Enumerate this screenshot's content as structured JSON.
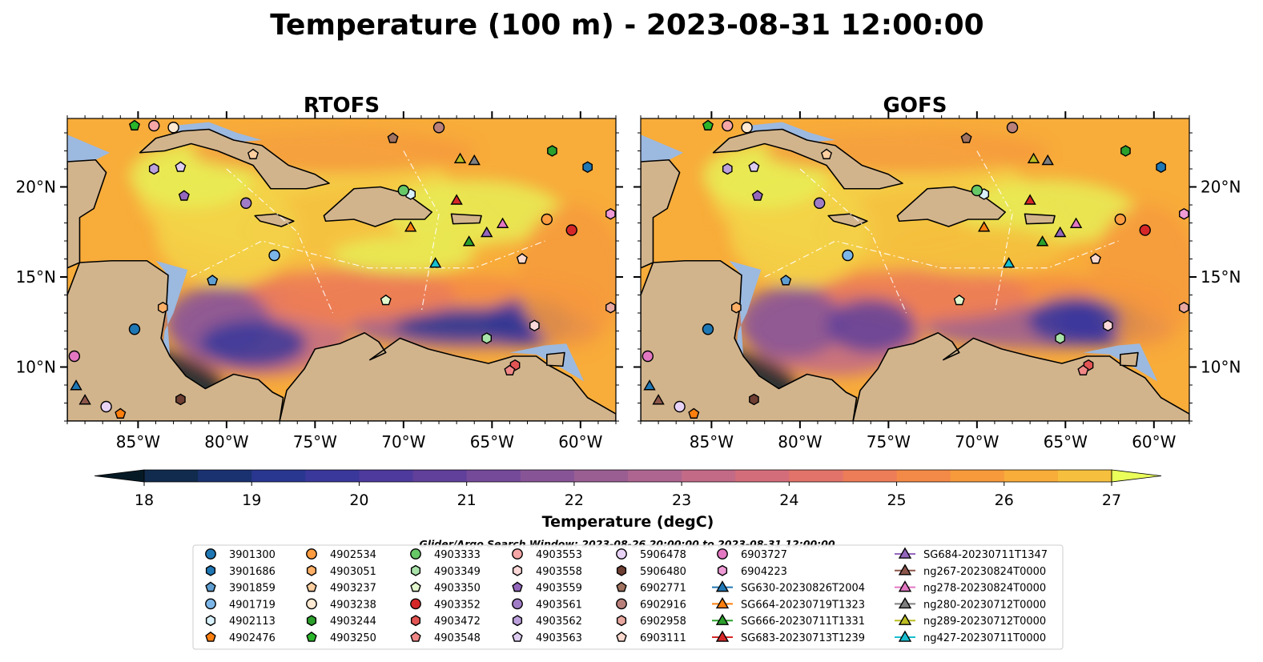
{
  "figure": {
    "title": "Temperature (100 m) - 2023-08-31 12:00:00",
    "panels": [
      {
        "name": "RTOFS",
        "title": "RTOFS",
        "lat_axis_side": "left"
      },
      {
        "name": "GOFS",
        "title": "GOFS",
        "lat_axis_side": "right"
      }
    ],
    "extent": {
      "lon_min": -89,
      "lon_max": -58,
      "lat_min": 7,
      "lat_max": 23.8
    },
    "lon_ticks": [
      {
        "value": -85,
        "label": "85°W"
      },
      {
        "value": -80,
        "label": "80°W"
      },
      {
        "value": -75,
        "label": "75°W"
      },
      {
        "value": -70,
        "label": "70°W"
      },
      {
        "value": -65,
        "label": "65°W"
      },
      {
        "value": -60,
        "label": "60°W"
      }
    ],
    "lat_ticks": [
      {
        "value": 20,
        "label": "20°N"
      },
      {
        "value": 15,
        "label": "15°N"
      },
      {
        "value": 10,
        "label": "10°N"
      }
    ],
    "colors": {
      "land": "#d2b48c",
      "shelf": "#9cb9e0",
      "deep_ocean": "#0a2331"
    }
  },
  "colorbar": {
    "label": "Temperature (degC)",
    "min": 18,
    "max": 27,
    "step": 0.5,
    "extend": "both",
    "ticks": [
      18,
      19,
      20,
      21,
      22,
      23,
      24,
      25,
      26,
      27
    ],
    "colors": [
      "#0b2231",
      "#102b4d",
      "#1a3270",
      "#2a3790",
      "#3a389b",
      "#4d3a9c",
      "#60409b",
      "#744a99",
      "#875596",
      "#9a5e93",
      "#ae6590",
      "#c26a86",
      "#d46d7a",
      "#e2736a",
      "#ec7d58",
      "#f38a47",
      "#f69a3c",
      "#f8ac3a",
      "#f6c03e",
      "#f3d449",
      "#e8ed56"
    ],
    "low_extend": "#061a26",
    "high_extend": "#eaff5a"
  },
  "legend": {
    "title": "Glider/Argo Search Window: 2023-08-26 20:00:00 to 2023-08-31 12:00:00",
    "entries": [
      {
        "label": "3901300",
        "marker": "circle",
        "color": "#1f77b4",
        "lon": -85.2,
        "lat": 12.1
      },
      {
        "label": "3901686",
        "marker": "hexagon",
        "color": "#1f77b4",
        "lon": -59.6,
        "lat": 21.1
      },
      {
        "label": "3901859",
        "marker": "pentagon",
        "color": "#5f9ed1",
        "lon": -80.8,
        "lat": 14.8
      },
      {
        "label": "4901719",
        "marker": "circle",
        "color": "#7cb6e8",
        "lon": -77.3,
        "lat": 16.2
      },
      {
        "label": "4902113",
        "marker": "hexagon",
        "color": "#d8f0fb",
        "lon": -69.6,
        "lat": 19.6
      },
      {
        "label": "4902476",
        "marker": "pentagon",
        "color": "#ff7f0e",
        "lon": -86.0,
        "lat": 7.4
      },
      {
        "label": "4902534",
        "marker": "circle",
        "color": "#ff9c40",
        "lon": -61.9,
        "lat": 18.2
      },
      {
        "label": "4903051",
        "marker": "hexagon",
        "color": "#ffb066",
        "lon": -83.6,
        "lat": 13.3
      },
      {
        "label": "4903237",
        "marker": "pentagon",
        "color": "#ffcfa0",
        "lon": -78.5,
        "lat": 21.8
      },
      {
        "label": "4903238",
        "marker": "circle",
        "color": "#ffe9d2",
        "lon": -83.0,
        "lat": 23.3
      },
      {
        "label": "4903244",
        "marker": "hexagon",
        "color": "#2ca02c",
        "lon": -61.6,
        "lat": 22.0
      },
      {
        "label": "4903250",
        "marker": "pentagon",
        "color": "#2ab52a",
        "lon": -85.2,
        "lat": 23.4
      },
      {
        "label": "4903333",
        "marker": "circle",
        "color": "#67c867",
        "lon": -70.0,
        "lat": 19.8
      },
      {
        "label": "4903349",
        "marker": "hexagon",
        "color": "#a9e3a9",
        "lon": -65.3,
        "lat": 11.6
      },
      {
        "label": "4903350",
        "marker": "pentagon",
        "color": "#e2f7cd",
        "lon": -71.0,
        "lat": 13.7
      },
      {
        "label": "4903352",
        "marker": "circle",
        "color": "#d62728",
        "lon": -60.5,
        "lat": 17.6
      },
      {
        "label": "4903472",
        "marker": "hexagon",
        "color": "#e35454",
        "lon": -63.7,
        "lat": 10.1
      },
      {
        "label": "4903548",
        "marker": "pentagon",
        "color": "#f08787",
        "lon": -64.0,
        "lat": 9.8
      },
      {
        "label": "4903553",
        "marker": "circle",
        "color": "#f6a6a6",
        "lon": -84.1,
        "lat": 23.4
      },
      {
        "label": "4903558",
        "marker": "hexagon",
        "color": "#fcd8d8",
        "lon": -62.6,
        "lat": 12.3
      },
      {
        "label": "4903559",
        "marker": "pentagon",
        "color": "#9467bd",
        "lon": -82.4,
        "lat": 19.5
      },
      {
        "label": "4903561",
        "marker": "circle",
        "color": "#a07cc6",
        "lon": -78.9,
        "lat": 19.1
      },
      {
        "label": "4903562",
        "marker": "hexagon",
        "color": "#bca0dc",
        "lon": -84.1,
        "lat": 21.0
      },
      {
        "label": "4903563",
        "marker": "pentagon",
        "color": "#ddccf0",
        "lon": -82.6,
        "lat": 21.1
      },
      {
        "label": "5906478",
        "marker": "circle",
        "color": "#e8d3f6",
        "lon": -86.8,
        "lat": 7.8
      },
      {
        "label": "5906480",
        "marker": "hexagon",
        "color": "#6e3f32",
        "lon": -82.6,
        "lat": 8.2
      },
      {
        "label": "6902771",
        "marker": "pentagon",
        "color": "#a0725f",
        "lon": -70.6,
        "lat": 22.7
      },
      {
        "label": "6902916",
        "marker": "circle",
        "color": "#b9807a",
        "lon": -68.0,
        "lat": 23.3
      },
      {
        "label": "6902958",
        "marker": "hexagon",
        "color": "#e8a8a0",
        "lon": -58.3,
        "lat": 13.3
      },
      {
        "label": "6903111",
        "marker": "pentagon",
        "color": "#fcd9ce",
        "lon": -63.3,
        "lat": 16.0
      },
      {
        "label": "6903727",
        "marker": "circle",
        "color": "#e377c2",
        "lon": -88.6,
        "lat": 10.6
      },
      {
        "label": "6904223",
        "marker": "hexagon",
        "color": "#ee9bd6",
        "lon": -58.3,
        "lat": 18.5
      },
      {
        "label": "SG630-20230826T2004",
        "marker": "triangle",
        "color": "#1f77b4",
        "lon": -88.5,
        "lat": 9.0
      },
      {
        "label": "SG664-20230719T1323",
        "marker": "triangle",
        "color": "#ff7f0e",
        "lon": -69.6,
        "lat": 17.8
      },
      {
        "label": "SG666-20230711T1331",
        "marker": "triangle",
        "color": "#2ca02c",
        "lon": -66.3,
        "lat": 17.0
      },
      {
        "label": "SG683-20230713T1239",
        "marker": "triangle",
        "color": "#d62728",
        "lon": -67.0,
        "lat": 19.3
      },
      {
        "label": "SG684-20230711T1347",
        "marker": "triangle",
        "color": "#9467bd",
        "lon": -65.3,
        "lat": 17.5
      },
      {
        "label": "ng267-20230824T0000",
        "marker": "triangle",
        "color": "#8c564b",
        "lon": -88.0,
        "lat": 8.2
      },
      {
        "label": "ng278-20230824T0000",
        "marker": "triangle",
        "color": "#e377c2",
        "lon": -64.4,
        "lat": 18.0
      },
      {
        "label": "ng280-20230712T0000",
        "marker": "triangle",
        "color": "#7f7f7f",
        "lon": -66.0,
        "lat": 21.5
      },
      {
        "label": "ng289-20230712T0000",
        "marker": "triangle",
        "color": "#bcbd22",
        "lon": -66.8,
        "lat": 21.6
      },
      {
        "label": "ng427-20230711T0000",
        "marker": "triangle",
        "color": "#17becf",
        "lon": -68.2,
        "lat": 15.8
      }
    ]
  }
}
